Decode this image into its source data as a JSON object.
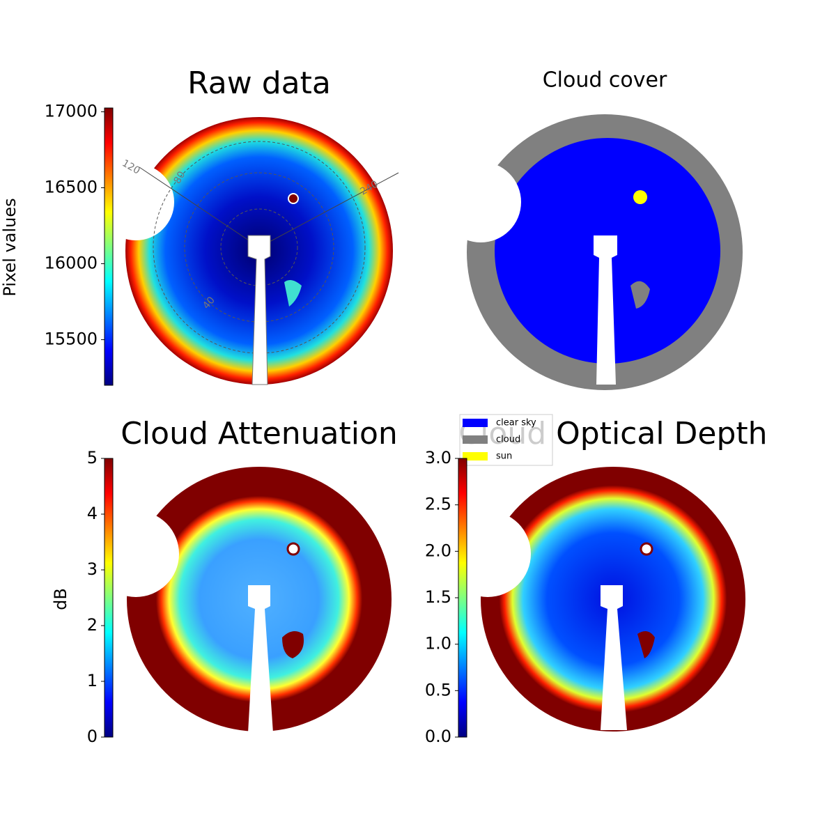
{
  "chart_data": [
    {
      "type": "image",
      "title": "Raw data",
      "ylabel": "Pixel values",
      "ylim": [
        15200,
        17025
      ],
      "yticks": [
        15500,
        16000,
        16500,
        17000
      ],
      "annotations": [
        "120",
        "80",
        "240",
        "40"
      ]
    },
    {
      "type": "image",
      "title": "Cloud cover",
      "series": [
        {
          "name": "clear sky",
          "color": "#0000ff"
        },
        {
          "name": "cloud",
          "color": "#808080"
        },
        {
          "name": "sun",
          "color": "#ffff00"
        }
      ]
    },
    {
      "type": "image",
      "title": "Cloud Attenuation",
      "ylabel": "dB",
      "ylim": [
        0,
        5
      ],
      "yticks": [
        0,
        1,
        2,
        3,
        4,
        5
      ]
    },
    {
      "type": "image",
      "title": "Cloud Optical Depth",
      "ylim": [
        0,
        3
      ],
      "yticks": [
        {
          "value": 0,
          "label": "0.0"
        },
        0.5,
        {
          "value": 1,
          "label": "1.0"
        },
        1.5,
        {
          "value": 2,
          "label": "2.0"
        },
        2.5,
        {
          "value": 3,
          "label": "3.0"
        }
      ]
    }
  ]
}
